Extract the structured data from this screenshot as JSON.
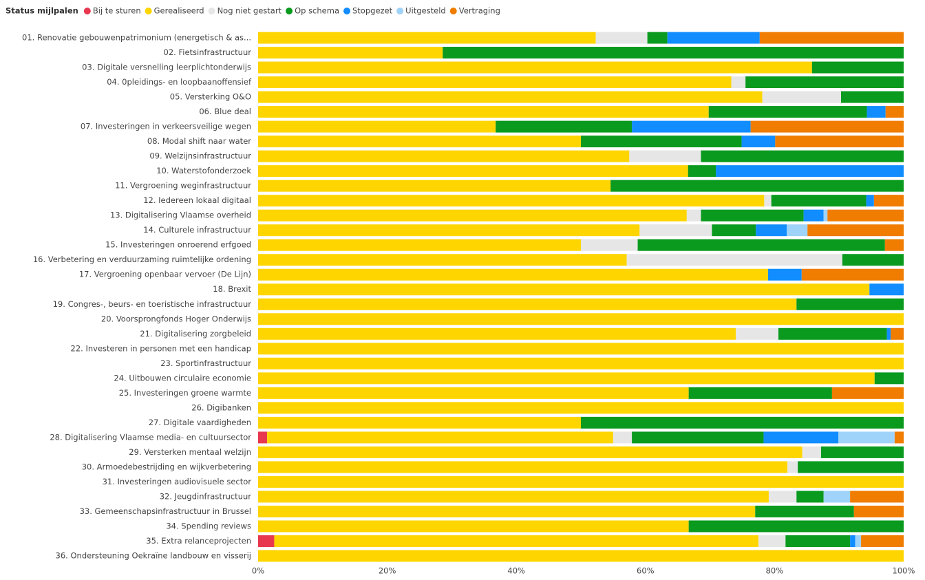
{
  "chart_data": {
    "type": "stacked_bar_horizontal_percent",
    "legend_title": "Status mijlpalen",
    "categories": [
      "01. Renovatie gebouwenpatrimonium (energetisch & as...",
      "02. Fietsinfrastructuur",
      "03. Digitale versnelling leerplichtonderwijs",
      "04. 0pleidings- en loopbaanoffensief",
      "05. Versterking O&O",
      "06. Blue deal",
      "07. Investeringen in verkeersveilige wegen",
      "08. Modal shift naar water",
      "09. Welzijnsinfrastructuur",
      "10. Waterstofonderzoek",
      "11. Vergroening weginfrastructuur",
      "12. Iedereen lokaal digitaal",
      "13. Digitalisering Vlaamse overheid",
      "14. Culturele infrastructuur",
      "15. Investeringen onroerend erfgoed",
      "16. Verbetering en verduurzaming ruimtelijke ordening",
      "17. Vergroening openbaar vervoer (De Lijn)",
      "18. Brexit",
      "19. Congres-, beurs- en toeristische infrastructuur",
      "20. Voorsprongfonds Hoger Onderwijs",
      "21. Digitalisering zorgbeleid",
      "22. Investeren in personen met een handicap",
      "23. Sportinfrastructuur",
      "24. Uitbouwen circulaire economie",
      "25. Investeringen groene warmte",
      "26. Digibanken",
      "27. Digitale vaardigheden",
      "28. Digitalisering Vlaamse media- en cultuursector",
      "29. Versterken mentaal welzijn",
      "30. Armoedebestrijding en wijkverbetering",
      "31. Investeringen audiovisuele sector",
      "32. Jeugdinfrastructuur",
      "33. Gemeenschapsinfrastructuur in Brussel",
      "34. Spending reviews",
      "35. Extra relanceprojecten",
      "36. Ondersteuning Oekraïne landbouw en visserij"
    ],
    "series": [
      {
        "name": "Bij te sturen",
        "color": "#e8384f",
        "values": [
          0,
          0,
          0,
          0,
          0,
          0,
          0,
          0,
          0,
          0,
          0,
          0,
          0,
          0,
          0,
          0,
          0,
          0,
          0,
          0,
          0,
          0,
          0,
          0,
          0,
          0,
          0,
          1.4,
          0,
          0,
          0,
          0,
          0,
          0,
          2.5,
          0
        ]
      },
      {
        "name": "Gerealiseerd",
        "color": "#ffd500",
        "values": [
          52.3,
          28.6,
          85.8,
          73.3,
          78.1,
          69.8,
          36.8,
          50,
          57.5,
          66.6,
          54.6,
          78.4,
          66.4,
          59.1,
          50,
          57.1,
          79,
          94.7,
          83.4,
          100,
          74,
          100,
          100,
          95.5,
          66.7,
          100,
          50,
          53.6,
          84.3,
          82,
          100,
          79.1,
          77,
          66.7,
          75,
          100
        ]
      },
      {
        "name": "Nog niet gestart",
        "color": "#e6e6e6",
        "values": [
          8,
          0,
          0,
          2.2,
          12.2,
          0,
          0,
          0,
          11.1,
          0,
          0,
          1.1,
          2.2,
          11.2,
          8.8,
          33.4,
          0,
          0,
          0,
          0,
          6.6,
          0,
          0,
          0,
          0,
          0,
          0,
          2.9,
          2.9,
          1.6,
          0,
          4.3,
          0,
          0,
          4.2,
          0
        ]
      },
      {
        "name": "Op schema",
        "color": "#0a9a1e",
        "values": [
          3.1,
          71.4,
          14.2,
          24.5,
          9.7,
          24.5,
          21.1,
          24.9,
          31.4,
          4.3,
          45.4,
          14.7,
          15.9,
          6.8,
          38.3,
          9.5,
          0,
          0,
          16.6,
          0,
          16.8,
          0,
          0,
          4.5,
          22.2,
          0,
          50,
          20.4,
          12.8,
          16.4,
          0,
          4.2,
          15.3,
          33.3,
          10,
          0
        ]
      },
      {
        "name": "Stopgezet",
        "color": "#118dff",
        "values": [
          14.3,
          0,
          0,
          0,
          0,
          2.9,
          18.4,
          5.2,
          0,
          29.1,
          0,
          1.2,
          3.1,
          4.8,
          0,
          0,
          5.2,
          5.3,
          0,
          0,
          0.6,
          0,
          0,
          0,
          0,
          0,
          0,
          11.6,
          0,
          0,
          0,
          0,
          0,
          0,
          0.8,
          0
        ]
      },
      {
        "name": "Uitgesteld",
        "color": "#9fd3fa",
        "values": [
          0,
          0,
          0,
          0,
          0,
          0,
          0,
          0,
          0,
          0,
          0,
          0,
          0.6,
          3.2,
          0,
          0,
          0,
          0,
          0,
          0,
          0,
          0,
          0,
          0,
          0,
          0,
          0,
          8.7,
          0,
          0,
          0,
          4.1,
          0,
          0,
          0.9,
          0
        ]
      },
      {
        "name": "Vertraging",
        "color": "#f07c00",
        "values": [
          22.3,
          0,
          0,
          0,
          0,
          2.8,
          23.7,
          19.9,
          0,
          0,
          0,
          4.6,
          11.8,
          14.9,
          2.9,
          0,
          15.8,
          0,
          0,
          0,
          2,
          0,
          0,
          0,
          11.1,
          0,
          0,
          1.4,
          0,
          0,
          0,
          8.3,
          7.7,
          0,
          6.6,
          0
        ]
      }
    ],
    "xlim": [
      0,
      100
    ],
    "xticks": [
      {
        "value": 0,
        "label": "0%"
      },
      {
        "value": 20,
        "label": "20%"
      },
      {
        "value": 40,
        "label": "40%"
      },
      {
        "value": 60,
        "label": "60%"
      },
      {
        "value": 80,
        "label": "80%"
      },
      {
        "value": 100,
        "label": "100%"
      }
    ],
    "legend_position": "top-left"
  }
}
